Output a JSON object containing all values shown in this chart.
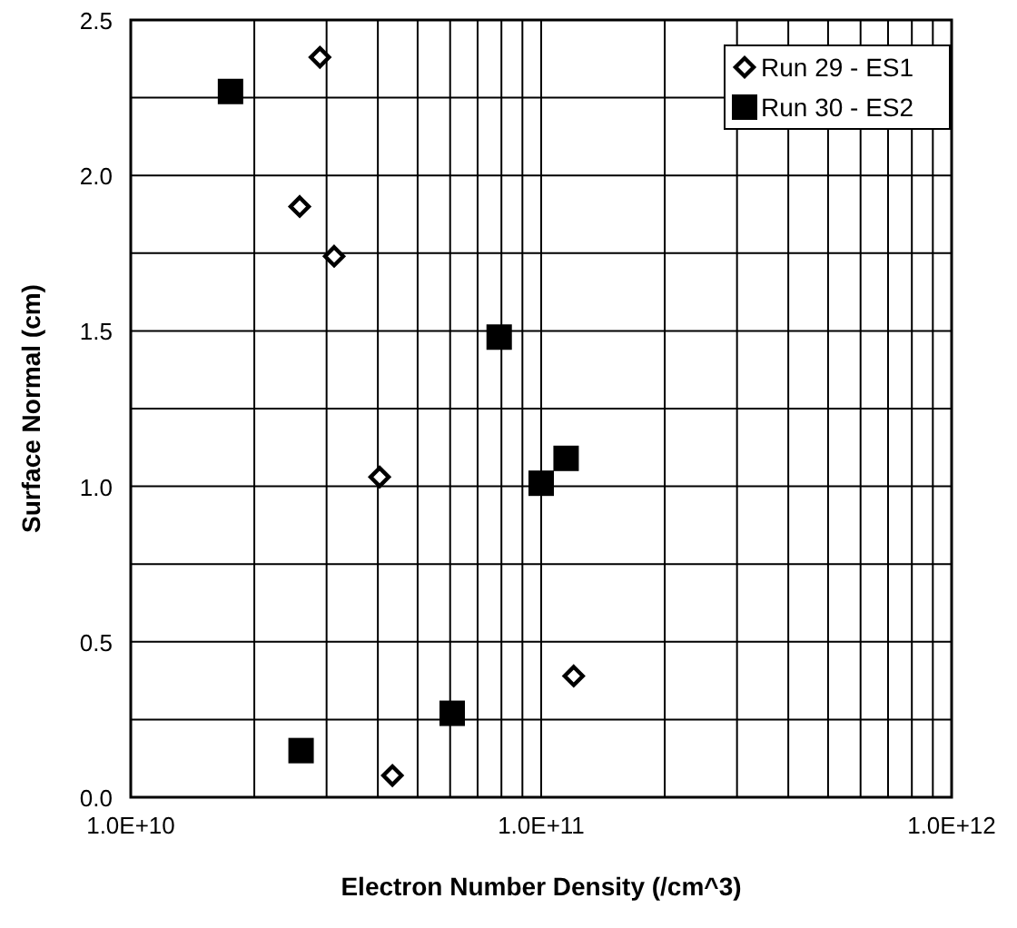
{
  "chart_data": {
    "type": "scatter",
    "xlabel": "Electron Number Density (/cm^3)",
    "ylabel": "Surface Normal (cm)",
    "log": "x",
    "grid": true,
    "legend": "top right",
    "xlim": [
      10000000000.0,
      1000000000000.0
    ],
    "ylim": [
      0,
      2.5
    ],
    "xticks": [
      {
        "value": 10000000000.0,
        "label": "1.0E+10"
      },
      {
        "value": 20000000000.0,
        "label": null
      },
      {
        "value": 30000000000.0,
        "label": null
      },
      {
        "value": 40000000000.0,
        "label": null
      },
      {
        "value": 50000000000.0,
        "label": null
      },
      {
        "value": 60000000000.0,
        "label": null
      },
      {
        "value": 70000000000.0,
        "label": null
      },
      {
        "value": 80000000000.0,
        "label": null
      },
      {
        "value": 90000000000.0,
        "label": null
      },
      {
        "value": 100000000000.0,
        "label": "1.0E+11"
      },
      {
        "value": 200000000000.0,
        "label": null
      },
      {
        "value": 300000000000.0,
        "label": null
      },
      {
        "value": 400000000000.0,
        "label": null
      },
      {
        "value": 500000000000.0,
        "label": null
      },
      {
        "value": 600000000000.0,
        "label": null
      },
      {
        "value": 700000000000.0,
        "label": null
      },
      {
        "value": 800000000000.0,
        "label": null
      },
      {
        "value": 900000000000.0,
        "label": null
      },
      {
        "value": 1000000000000.0,
        "label": "1.0E+12"
      }
    ],
    "yticks": [
      {
        "value": 0,
        "label": "0.0"
      },
      {
        "value": 0.25,
        "label": null
      },
      {
        "value": 0.5,
        "label": "0.5"
      },
      {
        "value": 0.75,
        "label": null
      },
      {
        "value": 1,
        "label": "1.0"
      },
      {
        "value": 1.25,
        "label": null
      },
      {
        "value": 1.5,
        "label": "1.5"
      },
      {
        "value": 1.75,
        "label": null
      },
      {
        "value": 2,
        "label": "2.0"
      },
      {
        "value": 2.25,
        "label": null
      },
      {
        "value": 2.5,
        "label": "2.5"
      }
    ],
    "series": [
      {
        "name": "Run 29 - ES1",
        "color": "#000000",
        "marker": "diamond",
        "x": [
          28900000000.0,
          25800000000.0,
          31300000000.0,
          40400000000.0,
          43400000000.0,
          120000000000.0
        ],
        "values": [
          2.38,
          1.9,
          1.74,
          1.03,
          0.07,
          0.39
        ]
      },
      {
        "name": "Run 30 - ES2",
        "color": "#000000",
        "marker": "square",
        "x": [
          17500000000.0,
          26000000000.0,
          60700000000.0,
          79000000000.0,
          100000000000.0,
          115000000000.0
        ],
        "values": [
          2.27,
          0.15,
          0.27,
          1.48,
          1.01,
          1.09
        ]
      }
    ]
  }
}
